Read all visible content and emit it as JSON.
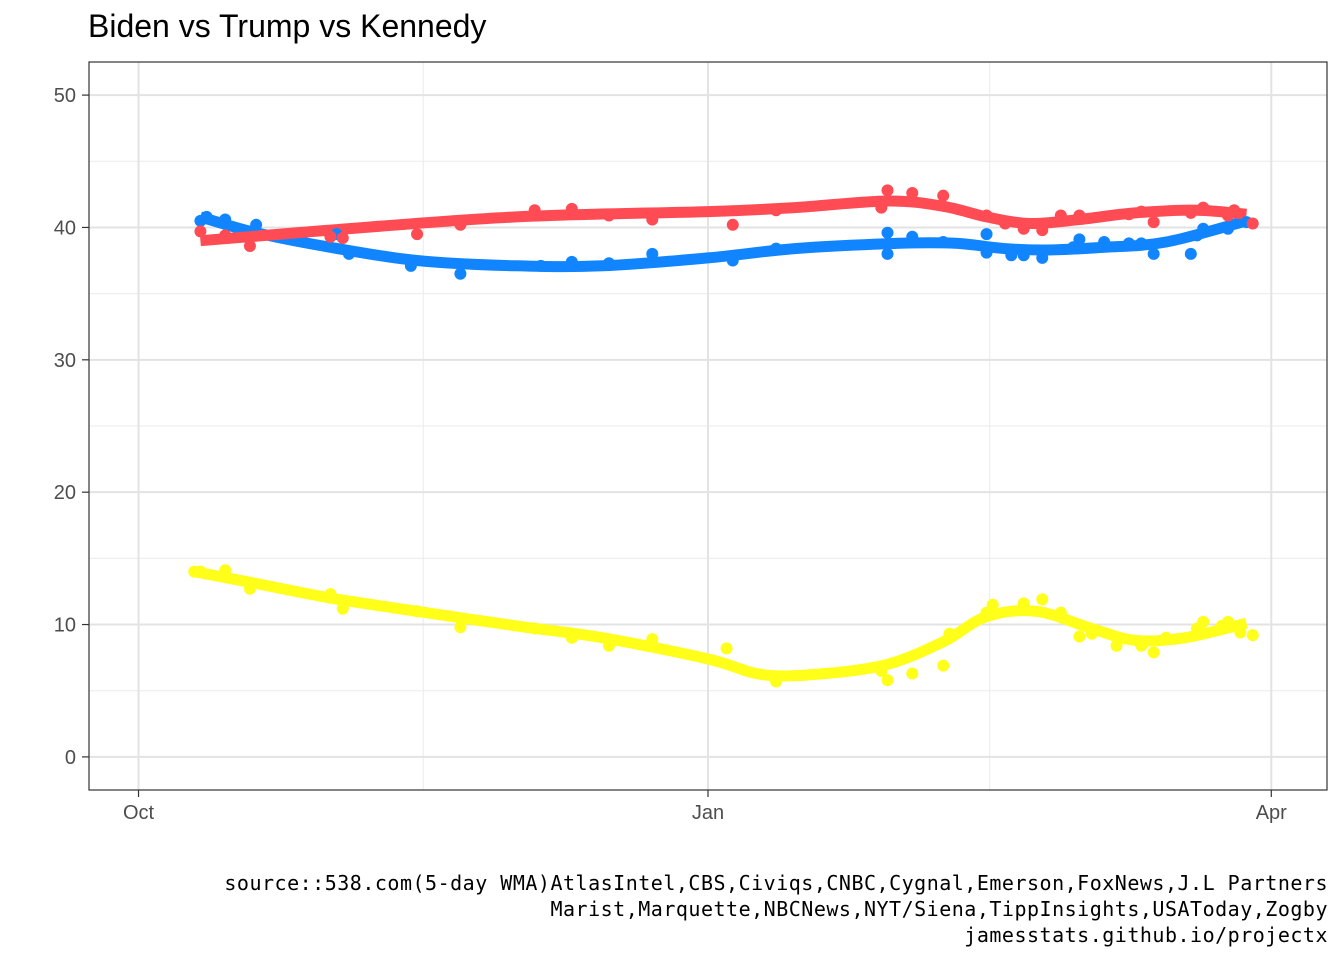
{
  "chart_data": {
    "type": "scatter",
    "title": "Biden vs Trump vs Kennedy",
    "xlabel": "",
    "ylabel": "",
    "x_axis": {
      "type": "date",
      "range": [
        "2023-09-23",
        "2024-04-10"
      ],
      "ticks": [
        {
          "date": "2023-10-01",
          "label": "Oct"
        },
        {
          "date": "2024-01-01",
          "label": "Jan"
        },
        {
          "date": "2024-04-01",
          "label": "Apr"
        }
      ]
    },
    "y_axis": {
      "range": [
        -2.5,
        52.5
      ],
      "ticks": [
        0,
        10,
        20,
        30,
        40,
        50
      ]
    },
    "grid": true,
    "legend": "none",
    "series": [
      {
        "color": "#1185ff",
        "points": [
          [
            "2023-10-11",
            40.5
          ],
          [
            "2023-10-12",
            40.8
          ],
          [
            "2023-10-15",
            40.6
          ],
          [
            "2023-10-20",
            40.2
          ],
          [
            "2023-11-02",
            39.5
          ],
          [
            "2023-11-04",
            38.0
          ],
          [
            "2023-11-14",
            37.1
          ],
          [
            "2023-11-22",
            36.5
          ],
          [
            "2023-12-05",
            37.1
          ],
          [
            "2023-12-10",
            37.4
          ],
          [
            "2023-12-16",
            37.3
          ],
          [
            "2023-12-23",
            38.0
          ],
          [
            "2024-01-05",
            37.5
          ],
          [
            "2024-01-12",
            38.4
          ],
          [
            "2024-01-30",
            38.0
          ],
          [
            "2024-01-30",
            39.6
          ],
          [
            "2024-02-03",
            39.3
          ],
          [
            "2024-02-08",
            38.9
          ],
          [
            "2024-02-15",
            39.5
          ],
          [
            "2024-02-15",
            38.1
          ],
          [
            "2024-02-19",
            37.9
          ],
          [
            "2024-02-21",
            37.9
          ],
          [
            "2024-02-24",
            37.7
          ],
          [
            "2024-02-29",
            38.5
          ],
          [
            "2024-03-01",
            39.1
          ],
          [
            "2024-03-05",
            38.9
          ],
          [
            "2024-03-09",
            38.8
          ],
          [
            "2024-03-11",
            38.8
          ],
          [
            "2024-03-13",
            38.0
          ],
          [
            "2024-03-19",
            38.0
          ],
          [
            "2024-03-20",
            39.4
          ],
          [
            "2024-03-21",
            39.9
          ],
          [
            "2024-03-25",
            39.9
          ],
          [
            "2024-03-28",
            40.4
          ]
        ],
        "trend": [
          [
            "2023-10-11",
            40.8
          ],
          [
            "2023-10-20",
            39.6
          ],
          [
            "2023-11-01",
            38.5
          ],
          [
            "2023-11-15",
            37.5
          ],
          [
            "2023-12-01",
            37.1
          ],
          [
            "2023-12-15",
            37.1
          ],
          [
            "2024-01-01",
            37.7
          ],
          [
            "2024-01-15",
            38.4
          ],
          [
            "2024-02-01",
            38.8
          ],
          [
            "2024-02-10",
            38.8
          ],
          [
            "2024-02-18",
            38.4
          ],
          [
            "2024-02-25",
            38.3
          ],
          [
            "2024-03-05",
            38.5
          ],
          [
            "2024-03-15",
            38.9
          ],
          [
            "2024-03-28",
            40.5
          ]
        ]
      },
      {
        "color": "#ff4c54",
        "points": [
          [
            "2023-10-11",
            39.7
          ],
          [
            "2023-10-15",
            39.4
          ],
          [
            "2023-10-19",
            38.6
          ],
          [
            "2023-11-01",
            39.3
          ],
          [
            "2023-11-03",
            39.2
          ],
          [
            "2023-11-15",
            39.5
          ],
          [
            "2023-11-22",
            40.2
          ],
          [
            "2023-12-04",
            41.3
          ],
          [
            "2023-12-10",
            41.4
          ],
          [
            "2023-12-16",
            40.9
          ],
          [
            "2023-12-23",
            40.6
          ],
          [
            "2024-01-05",
            40.2
          ],
          [
            "2024-01-12",
            41.3
          ],
          [
            "2024-01-29",
            41.5
          ],
          [
            "2024-01-30",
            42.8
          ],
          [
            "2024-02-03",
            42.6
          ],
          [
            "2024-02-08",
            42.4
          ],
          [
            "2024-02-15",
            40.9
          ],
          [
            "2024-02-18",
            40.3
          ],
          [
            "2024-02-21",
            39.9
          ],
          [
            "2024-02-24",
            39.8
          ],
          [
            "2024-02-27",
            40.9
          ],
          [
            "2024-03-01",
            40.9
          ],
          [
            "2024-03-09",
            41.0
          ],
          [
            "2024-03-11",
            41.2
          ],
          [
            "2024-03-13",
            40.4
          ],
          [
            "2024-03-19",
            41.1
          ],
          [
            "2024-03-21",
            41.5
          ],
          [
            "2024-03-25",
            40.9
          ],
          [
            "2024-03-26",
            41.3
          ],
          [
            "2024-03-29",
            40.3
          ]
        ],
        "trend": [
          [
            "2023-10-11",
            39.0
          ],
          [
            "2023-11-01",
            39.8
          ],
          [
            "2023-12-01",
            40.8
          ],
          [
            "2024-01-01",
            41.2
          ],
          [
            "2024-01-15",
            41.5
          ],
          [
            "2024-01-30",
            42.0
          ],
          [
            "2024-02-08",
            41.6
          ],
          [
            "2024-02-15",
            40.8
          ],
          [
            "2024-02-22",
            40.3
          ],
          [
            "2024-03-01",
            40.6
          ],
          [
            "2024-03-10",
            41.1
          ],
          [
            "2024-03-20",
            41.3
          ],
          [
            "2024-03-28",
            41.0
          ]
        ]
      },
      {
        "color": "#ffff1a",
        "points": [
          [
            "2023-10-10",
            14.0
          ],
          [
            "2023-10-11",
            14.0
          ],
          [
            "2023-10-15",
            14.1
          ],
          [
            "2023-10-19",
            12.7
          ],
          [
            "2023-11-01",
            12.3
          ],
          [
            "2023-11-03",
            11.2
          ],
          [
            "2023-11-15",
            11.0
          ],
          [
            "2023-11-22",
            9.8
          ],
          [
            "2023-12-04",
            9.7
          ],
          [
            "2023-12-10",
            9.0
          ],
          [
            "2023-12-16",
            8.4
          ],
          [
            "2023-12-23",
            8.9
          ],
          [
            "2024-01-04",
            8.2
          ],
          [
            "2024-01-12",
            5.7
          ],
          [
            "2024-01-29",
            6.5
          ],
          [
            "2024-01-30",
            5.8
          ],
          [
            "2024-02-03",
            6.3
          ],
          [
            "2024-02-08",
            6.9
          ],
          [
            "2024-02-09",
            9.3
          ],
          [
            "2024-02-15",
            10.9
          ],
          [
            "2024-02-16",
            11.5
          ],
          [
            "2024-02-21",
            11.6
          ],
          [
            "2024-02-24",
            11.9
          ],
          [
            "2024-02-27",
            10.9
          ],
          [
            "2024-03-01",
            9.1
          ],
          [
            "2024-03-03",
            9.3
          ],
          [
            "2024-03-07",
            8.4
          ],
          [
            "2024-03-11",
            8.4
          ],
          [
            "2024-03-13",
            7.9
          ],
          [
            "2024-03-15",
            9.0
          ],
          [
            "2024-03-20",
            9.7
          ],
          [
            "2024-03-21",
            10.2
          ],
          [
            "2024-03-24",
            9.9
          ],
          [
            "2024-03-25",
            10.2
          ],
          [
            "2024-03-27",
            9.4
          ],
          [
            "2024-03-29",
            9.2
          ]
        ],
        "trend": [
          [
            "2023-10-10",
            14.0
          ],
          [
            "2023-10-20",
            13.1
          ],
          [
            "2023-11-01",
            12.0
          ],
          [
            "2023-11-15",
            11.0
          ],
          [
            "2023-12-01",
            9.9
          ],
          [
            "2023-12-15",
            9.0
          ],
          [
            "2024-01-01",
            7.4
          ],
          [
            "2024-01-10",
            6.2
          ],
          [
            "2024-01-20",
            6.3
          ],
          [
            "2024-01-30",
            7.0
          ],
          [
            "2024-02-08",
            8.7
          ],
          [
            "2024-02-15",
            10.6
          ],
          [
            "2024-02-23",
            11.0
          ],
          [
            "2024-03-03",
            9.7
          ],
          [
            "2024-03-10",
            8.8
          ],
          [
            "2024-03-18",
            9.0
          ],
          [
            "2024-03-28",
            10.1
          ]
        ]
      }
    ]
  },
  "caption": {
    "line1": "source::538.com(5-day WMA)AtlasIntel,CBS,Civiqs,CNBC,Cygnal,Emerson,FoxNews,J.L Partners",
    "line2": "Marist,Marquette,NBCNews,NYT/Siena,TippInsights,USAToday,Zogby",
    "line3": "jamesstats.github.io/projectx"
  }
}
